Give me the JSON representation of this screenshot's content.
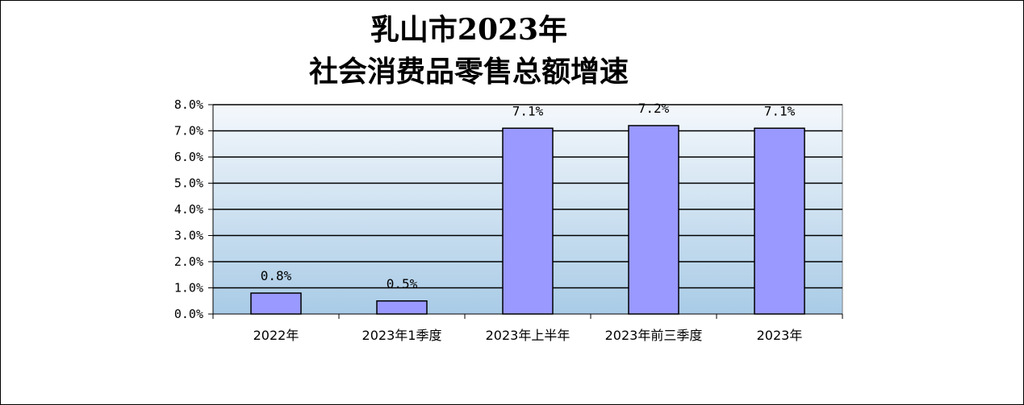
{
  "chart_data": {
    "type": "bar",
    "title_line1": "乳山市2023年",
    "title_line2": "社会消费品零售总额增速",
    "categories": [
      "2022年",
      "2023年1季度",
      "2023年上半年",
      "2023年前三季度",
      "2023年"
    ],
    "values": [
      0.8,
      0.5,
      7.1,
      7.2,
      7.1
    ],
    "data_labels": [
      "0.8%",
      "0.5%",
      "7.1%",
      "7.2%",
      "7.1%"
    ],
    "y_ticks": [
      "0.0%",
      "1.0%",
      "2.0%",
      "3.0%",
      "4.0%",
      "5.0%",
      "6.0%",
      "7.0%",
      "8.0%"
    ],
    "ylim": [
      0,
      8
    ],
    "grid": true,
    "xlabel": "",
    "ylabel": "",
    "colors": {
      "bar_fill": "#9999ff",
      "bar_stroke": "#000000",
      "plot_bg_top": "#f4f8fc",
      "plot_bg_bottom": "#a9cbe6",
      "gridline": "#000000"
    }
  }
}
